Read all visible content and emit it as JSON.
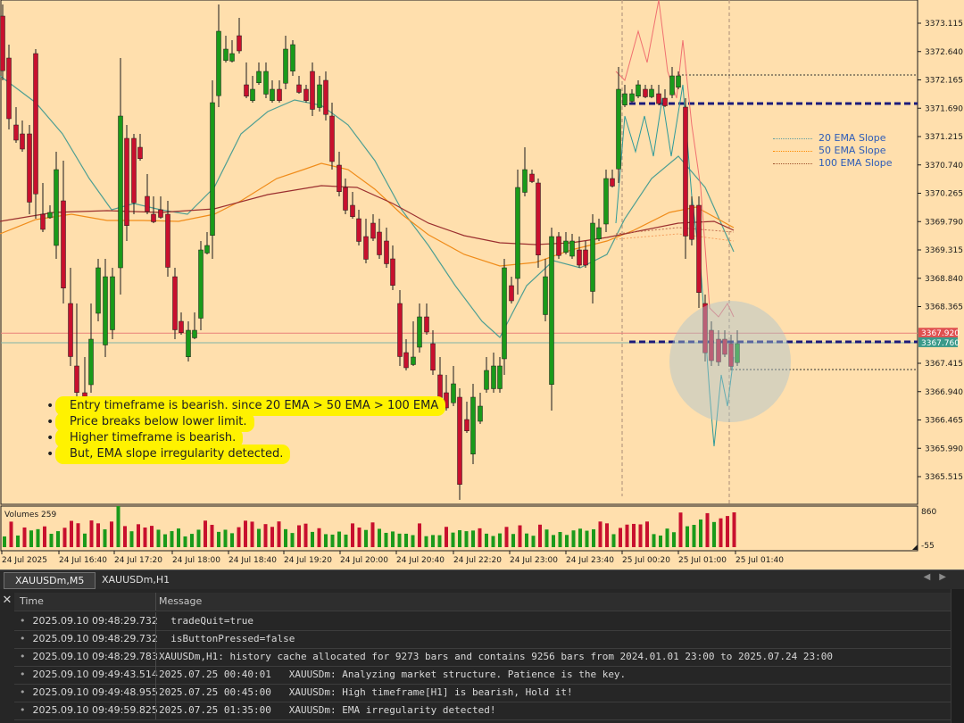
{
  "chart": {
    "price_labels": [
      "3373.115",
      "3372.640",
      "3372.165",
      "3371.690",
      "3371.215",
      "3370.740",
      "3370.265",
      "3369.790",
      "3369.315",
      "3368.840",
      "3368.365",
      "3367.415",
      "3366.940",
      "3366.465",
      "3365.990",
      "3365.515"
    ],
    "bid_tag": "3367.920",
    "ask_tag": "3367.760",
    "volumes_label": "Volumes 259",
    "volume_axis_top": "860",
    "volume_axis_bottom": "-55",
    "time_labels": [
      "24 Jul 2025",
      "24 Jul 16:40",
      "24 Jul 17:20",
      "24 Jul 18:00",
      "24 Jul 18:40",
      "24 Jul 19:20",
      "24 Jul 20:00",
      "24 Jul 20:40",
      "24 Jul 22:20",
      "24 Jul 23:00",
      "24 Jul 23:40",
      "25 Jul 00:20",
      "25 Jul 01:00",
      "25 Jul 01:40"
    ],
    "legend": [
      {
        "label": "20  EMA Slope",
        "color": "#5f9ea0"
      },
      {
        "label": "50  EMA Slope",
        "color": "#ff8c00"
      },
      {
        "label": "100  EMA Slope",
        "color": "#a0522d"
      }
    ],
    "colors": {
      "bull": "#1a9a1a",
      "bear": "#c8102e",
      "ema20": "#4f9f93",
      "ema50": "#f08c1a",
      "ema100": "#9b2f2f",
      "background": "#ffdfad"
    },
    "annotations": [
      "Entry timeframe is bearish. since 20 EMA > 50 EMA > 100 EMA",
      "Price breaks below  lower limit.",
      "Higher timeframe is bearish.",
      "But, EMA slope irregularity detected."
    ]
  },
  "tabs": [
    {
      "label": "XAUUSDm,M5",
      "active": true
    },
    {
      "label": "XAUUSDm,H1",
      "active": false
    }
  ],
  "toolbox": {
    "close_icon": "close-icon",
    "headers": {
      "time": "Time",
      "message": "Message"
    },
    "rows": [
      {
        "time": "2025.09.10 09:48:29.732",
        "message": "  tradeQuit=true"
      },
      {
        "time": "2025.09.10 09:48:29.732",
        "message": "  isButtonPressed=false"
      },
      {
        "time": "2025.09.10 09:48:29.783",
        "message": "XAUUSDm,H1: history cache allocated for 9273 bars and contains 9256 bars from 2024.01.01 23:00 to 2025.07.24 23:00"
      },
      {
        "time": "2025.09.10 09:49:43.514",
        "message": "2025.07.25 00:40:01   XAUUSDm: Analyzing market structure. Patience is the key."
      },
      {
        "time": "2025.09.10 09:49:48.955",
        "message": "2025.07.25 00:45:00   XAUUSDm: High timeframe[H1] is bearish, Hold it!"
      },
      {
        "time": "2025.09.10 09:49:59.825",
        "message": "2025.07.25 01:35:00   XAUUSDm: EMA irregularity detected!"
      }
    ]
  }
}
